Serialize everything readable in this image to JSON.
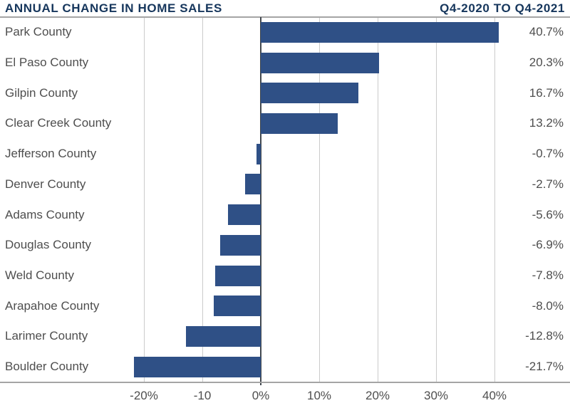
{
  "header": {
    "title": "ANNUAL CHANGE IN HOME SALES",
    "subtitle": "Q4-2020 TO Q4-2021"
  },
  "colors": {
    "bar": "#2F5086",
    "title": "#16365C",
    "label": "#4E4E4E",
    "grid": "#CBCBCB",
    "frame": "#A5A5A5",
    "zero_line": "#42484F",
    "background": "#FFFFFF"
  },
  "chart_data": {
    "type": "bar",
    "orientation": "horizontal",
    "title": "ANNUAL CHANGE IN HOME SALES",
    "subtitle": "Q4-2020 TO Q4-2021",
    "categories": [
      "Park County",
      "El Paso County",
      "Gilpin County",
      "Clear Creek County",
      "Jefferson County",
      "Denver County",
      "Adams County",
      "Douglas County",
      "Weld County",
      "Arapahoe County",
      "Larimer County",
      "Boulder County"
    ],
    "values": [
      40.7,
      20.3,
      16.7,
      13.2,
      -0.7,
      -2.7,
      -5.6,
      -6.9,
      -7.8,
      -8.0,
      -12.8,
      -21.7
    ],
    "value_labels": [
      "40.7%",
      "20.3%",
      "16.7%",
      "13.2%",
      "-0.7%",
      "-2.7%",
      "-5.6%",
      "-6.9%",
      "-7.8%",
      "-8.0%",
      "-12.8%",
      "-21.7%"
    ],
    "x_ticks": [
      {
        "value": -20,
        "label": "-20%"
      },
      {
        "value": -10,
        "label": "-10"
      },
      {
        "value": 0,
        "label": "0%"
      },
      {
        "value": 10,
        "label": "10%"
      },
      {
        "value": 20,
        "label": "20%"
      },
      {
        "value": 30,
        "label": "30%"
      },
      {
        "value": 40,
        "label": "40%"
      }
    ],
    "xlim": [
      -25,
      45
    ],
    "grid": "vertical-only",
    "legend": "none",
    "value_label_position": "right-margin"
  }
}
